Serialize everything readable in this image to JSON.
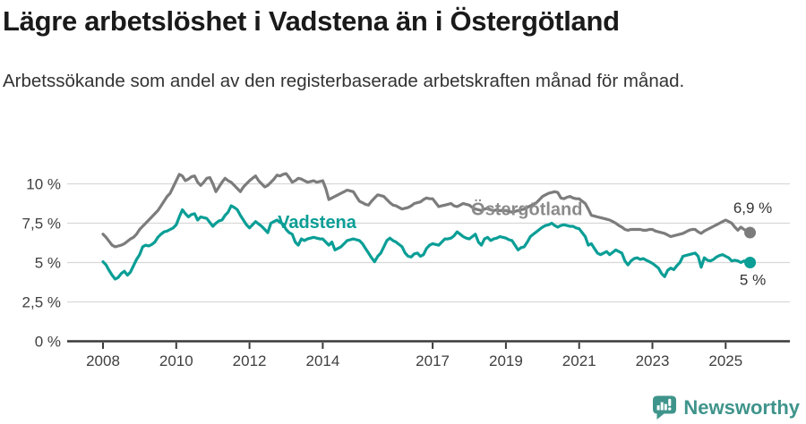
{
  "chart_data": {
    "type": "line",
    "title": "Lägre arbetslöshet i Vadstena än i Östergötland",
    "subtitle": "Arbetssökande som andel av den registerbaserade arbetskraften månad för månad.",
    "unit": "%",
    "grid": true,
    "x_start_year": 2008,
    "points_per_year": 12,
    "x_ticks": [
      {
        "year": 2008,
        "label": "2008"
      },
      {
        "year": 2010,
        "label": "2010"
      },
      {
        "year": 2012,
        "label": "2012"
      },
      {
        "year": 2014,
        "label": "2014"
      },
      {
        "year": 2017,
        "label": "2017"
      },
      {
        "year": 2019,
        "label": "2019"
      },
      {
        "year": 2021,
        "label": "2021"
      },
      {
        "year": 2023,
        "label": "2023"
      },
      {
        "year": 2025,
        "label": "2025"
      }
    ],
    "y_ticks": [
      {
        "value": 0,
        "label": "0 %"
      },
      {
        "value": 2.5,
        "label": "2,5 %"
      },
      {
        "value": 5,
        "label": "5 %"
      },
      {
        "value": 7.5,
        "label": "7,5 %"
      },
      {
        "value": 10,
        "label": "10 %"
      }
    ],
    "ylim": [
      0,
      11
    ],
    "series": [
      {
        "name": "Östergötland",
        "color": "#7c7c7c",
        "label_color": "#8b8b8b",
        "label_at": {
          "year": 2018.05,
          "value": 8.0
        },
        "end_label": "6,9 %",
        "end_label_offset": -22,
        "values": [
          6.8,
          6.6,
          6.35,
          6.1,
          6.0,
          6.05,
          6.1,
          6.2,
          6.35,
          6.5,
          6.6,
          6.8,
          7.1,
          7.3,
          7.5,
          7.7,
          7.9,
          8.1,
          8.3,
          8.6,
          8.9,
          9.2,
          9.4,
          9.8,
          10.2,
          10.6,
          10.5,
          10.2,
          10.3,
          10.45,
          10.5,
          10.1,
          9.9,
          10.1,
          10.35,
          10.4,
          10.0,
          9.5,
          9.8,
          10.1,
          10.35,
          10.2,
          10.1,
          9.9,
          9.7,
          9.5,
          9.8,
          10.0,
          10.2,
          10.35,
          10.5,
          10.2,
          10.0,
          9.8,
          9.9,
          10.1,
          10.3,
          10.55,
          10.5,
          10.6,
          10.65,
          10.4,
          10.1,
          10.2,
          10.35,
          10.3,
          10.2,
          10.1,
          10.15,
          10.2,
          10.1,
          10.15,
          10.2,
          9.7,
          9.0,
          9.1,
          9.2,
          9.3,
          9.4,
          9.5,
          9.6,
          9.55,
          9.5,
          9.2,
          8.9,
          8.8,
          8.7,
          8.65,
          8.9,
          9.1,
          9.3,
          9.25,
          9.2,
          9.0,
          8.8,
          8.65,
          8.6,
          8.5,
          8.4,
          8.45,
          8.5,
          8.6,
          8.75,
          8.8,
          8.85,
          9.0,
          9.1,
          9.05,
          9.05,
          8.8,
          8.55,
          8.6,
          8.65,
          8.7,
          8.75,
          8.6,
          8.55,
          8.65,
          8.75,
          8.7,
          8.65,
          8.5,
          8.4,
          8.35,
          8.3,
          8.4,
          8.45,
          8.35,
          8.3,
          8.35,
          8.3,
          8.3,
          8.3,
          8.25,
          8.2,
          8.25,
          8.3,
          8.35,
          8.4,
          8.5,
          8.6,
          8.7,
          8.8,
          9.0,
          9.2,
          9.3,
          9.4,
          9.45,
          9.5,
          9.45,
          9.1,
          9.05,
          9.15,
          9.2,
          9.1,
          9.05,
          9.05,
          8.9,
          8.75,
          8.4,
          8.0,
          7.95,
          7.9,
          7.85,
          7.8,
          7.75,
          7.7,
          7.6,
          7.5,
          7.35,
          7.25,
          7.1,
          7.05,
          7.1,
          7.1,
          7.1,
          7.1,
          7.05,
          7.05,
          7.1,
          7.1,
          7.0,
          6.95,
          6.9,
          6.85,
          6.75,
          6.65,
          6.7,
          6.75,
          6.8,
          6.85,
          6.95,
          7.05,
          7.1,
          7.1,
          6.95,
          6.85,
          7.0,
          7.1,
          7.2,
          7.3,
          7.4,
          7.5,
          7.6,
          7.7,
          7.6,
          7.5,
          7.25,
          7.05,
          7.25,
          7.1,
          7.0,
          6.9
        ]
      },
      {
        "name": "Vadstena",
        "color": "#0a9e96",
        "label_color": "#0a9e96",
        "label_at": {
          "year": 2012.77,
          "value": 7.2
        },
        "end_label": "5 %",
        "end_label_offset": 25,
        "values": [
          5.05,
          4.85,
          4.5,
          4.2,
          3.95,
          4.05,
          4.3,
          4.45,
          4.2,
          4.4,
          4.8,
          5.2,
          5.5,
          6.0,
          6.1,
          6.05,
          6.15,
          6.3,
          6.6,
          6.8,
          6.95,
          7.0,
          7.1,
          7.2,
          7.4,
          7.9,
          8.35,
          8.1,
          7.9,
          8.05,
          8.1,
          7.7,
          7.9,
          7.85,
          7.8,
          7.55,
          7.3,
          7.5,
          7.65,
          7.7,
          8.0,
          8.2,
          8.6,
          8.5,
          8.35,
          8.0,
          7.7,
          7.4,
          7.2,
          7.4,
          7.6,
          7.45,
          7.3,
          7.1,
          6.9,
          7.5,
          7.6,
          7.7,
          7.55,
          7.45,
          7.1,
          6.9,
          6.8,
          6.3,
          6.1,
          6.5,
          6.4,
          6.5,
          6.55,
          6.6,
          6.55,
          6.5,
          6.5,
          6.3,
          6.1,
          6.3,
          5.8,
          5.9,
          6.0,
          6.2,
          6.4,
          6.45,
          6.5,
          6.45,
          6.4,
          6.2,
          5.9,
          5.6,
          5.3,
          5.05,
          5.4,
          5.6,
          6.0,
          6.4,
          6.55,
          6.4,
          6.3,
          6.15,
          6.0,
          5.6,
          5.4,
          5.35,
          5.55,
          5.6,
          5.4,
          5.5,
          5.9,
          6.1,
          6.2,
          6.15,
          6.1,
          6.3,
          6.5,
          6.5,
          6.55,
          6.7,
          6.95,
          6.8,
          6.65,
          6.55,
          6.5,
          6.65,
          6.8,
          6.3,
          6.1,
          6.5,
          6.6,
          6.4,
          6.5,
          6.55,
          6.65,
          6.6,
          6.55,
          6.45,
          6.4,
          6.1,
          5.8,
          5.95,
          6.0,
          6.3,
          6.65,
          6.8,
          6.95,
          7.1,
          7.25,
          7.35,
          7.4,
          7.5,
          7.35,
          7.25,
          7.35,
          7.4,
          7.35,
          7.3,
          7.3,
          7.2,
          7.15,
          6.9,
          6.65,
          6.1,
          6.2,
          5.9,
          5.6,
          5.5,
          5.6,
          5.7,
          5.5,
          5.65,
          5.8,
          5.7,
          5.6,
          5.1,
          4.85,
          5.1,
          5.25,
          5.3,
          5.2,
          5.25,
          5.15,
          5.05,
          4.95,
          4.8,
          4.65,
          4.3,
          4.1,
          4.5,
          4.65,
          4.55,
          4.8,
          5.0,
          5.4,
          5.45,
          5.5,
          5.55,
          5.6,
          5.4,
          4.7,
          5.3,
          5.15,
          5.1,
          5.2,
          5.35,
          5.45,
          5.5,
          5.4,
          5.3,
          5.1,
          5.15,
          5.1,
          5.0,
          5.1,
          5.05,
          5.0
        ]
      }
    ]
  },
  "footer": {
    "brand": "Newsworthy",
    "logo_color": "#3f948b"
  }
}
